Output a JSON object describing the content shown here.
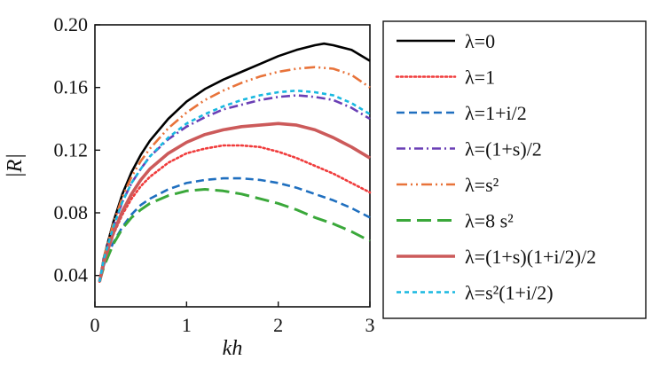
{
  "chart_data": {
    "type": "line",
    "xlabel": "kh",
    "ylabel": "|R|",
    "xlim": [
      0,
      3
    ],
    "ylim": [
      0.02,
      0.2
    ],
    "x_ticks": [
      "0",
      "1",
      "2",
      "3"
    ],
    "y_ticks": [
      "0.04",
      "0.08",
      "0.12",
      "0.16",
      "0.20"
    ],
    "legend_position": "right, outside plot",
    "series": [
      {
        "name": "λ=0",
        "color": "#000000",
        "dash": "solid",
        "x": [
          0.05,
          0.1,
          0.2,
          0.3,
          0.4,
          0.5,
          0.6,
          0.8,
          1.0,
          1.2,
          1.4,
          1.6,
          1.8,
          2.0,
          2.2,
          2.4,
          2.5,
          2.6,
          2.8,
          3.0
        ],
        "y": [
          0.036,
          0.052,
          0.074,
          0.092,
          0.106,
          0.117,
          0.126,
          0.14,
          0.151,
          0.159,
          0.165,
          0.17,
          0.175,
          0.18,
          0.184,
          0.187,
          0.188,
          0.187,
          0.184,
          0.177
        ]
      },
      {
        "name": "λ=1",
        "color": "#f03c3c",
        "dash": "dotted",
        "x": [
          0.05,
          0.1,
          0.2,
          0.3,
          0.4,
          0.5,
          0.6,
          0.8,
          1.0,
          1.2,
          1.4,
          1.6,
          1.8,
          2.0,
          2.2,
          2.4,
          2.6,
          2.8,
          3.0
        ],
        "y": [
          0.036,
          0.049,
          0.066,
          0.079,
          0.089,
          0.097,
          0.103,
          0.112,
          0.118,
          0.121,
          0.123,
          0.123,
          0.122,
          0.119,
          0.115,
          0.11,
          0.105,
          0.099,
          0.093
        ]
      },
      {
        "name": "λ=1+i/2",
        "color": "#1f6fbf",
        "dash": "dashed",
        "x": [
          0.05,
          0.1,
          0.2,
          0.3,
          0.4,
          0.5,
          0.6,
          0.8,
          1.0,
          1.2,
          1.4,
          1.6,
          1.8,
          2.0,
          2.2,
          2.4,
          2.6,
          2.8,
          3.0
        ],
        "y": [
          0.036,
          0.047,
          0.061,
          0.071,
          0.079,
          0.085,
          0.089,
          0.095,
          0.099,
          0.101,
          0.102,
          0.102,
          0.101,
          0.099,
          0.096,
          0.092,
          0.088,
          0.083,
          0.077
        ]
      },
      {
        "name": "λ=(1+s)/2",
        "color": "#6a3fb5",
        "dash": "dashdot",
        "x": [
          0.05,
          0.1,
          0.2,
          0.3,
          0.4,
          0.5,
          0.6,
          0.8,
          1.0,
          1.2,
          1.4,
          1.6,
          1.8,
          2.0,
          2.2,
          2.4,
          2.6,
          2.8,
          3.0
        ],
        "y": [
          0.036,
          0.051,
          0.071,
          0.087,
          0.099,
          0.108,
          0.116,
          0.127,
          0.135,
          0.141,
          0.146,
          0.149,
          0.152,
          0.154,
          0.155,
          0.154,
          0.152,
          0.147,
          0.14
        ]
      },
      {
        "name": "λ=s²",
        "color": "#e8733a",
        "dash": "dashdotdot",
        "x": [
          0.05,
          0.1,
          0.2,
          0.3,
          0.4,
          0.5,
          0.6,
          0.8,
          1.0,
          1.2,
          1.4,
          1.6,
          1.8,
          2.0,
          2.2,
          2.4,
          2.6,
          2.8,
          3.0
        ],
        "y": [
          0.036,
          0.052,
          0.073,
          0.09,
          0.103,
          0.113,
          0.121,
          0.134,
          0.144,
          0.152,
          0.158,
          0.163,
          0.167,
          0.17,
          0.172,
          0.173,
          0.172,
          0.168,
          0.16
        ]
      },
      {
        "name": "λ=8 s²",
        "color": "#3aa83a",
        "dash": "longdash",
        "x": [
          0.05,
          0.1,
          0.2,
          0.3,
          0.4,
          0.5,
          0.6,
          0.8,
          1.0,
          1.2,
          1.4,
          1.6,
          1.8,
          2.0,
          2.2,
          2.4,
          2.6,
          2.8,
          3.0
        ],
        "y": [
          0.036,
          0.046,
          0.06,
          0.07,
          0.077,
          0.082,
          0.086,
          0.091,
          0.094,
          0.095,
          0.094,
          0.092,
          0.089,
          0.086,
          0.082,
          0.077,
          0.073,
          0.068,
          0.062
        ]
      },
      {
        "name": "λ=(1+s)(1+i/2)/2",
        "color": "#cc5a5a",
        "dash": "solid-thick",
        "x": [
          0.05,
          0.1,
          0.2,
          0.3,
          0.4,
          0.5,
          0.6,
          0.8,
          1.0,
          1.2,
          1.4,
          1.6,
          1.8,
          2.0,
          2.2,
          2.4,
          2.6,
          2.8,
          3.0
        ],
        "y": [
          0.036,
          0.049,
          0.067,
          0.081,
          0.092,
          0.101,
          0.108,
          0.118,
          0.125,
          0.13,
          0.133,
          0.135,
          0.136,
          0.137,
          0.136,
          0.133,
          0.128,
          0.122,
          0.115
        ]
      },
      {
        "name": "λ=s²(1+i/2)",
        "color": "#18b8e0",
        "dash": "shortdash",
        "x": [
          0.05,
          0.1,
          0.2,
          0.3,
          0.4,
          0.5,
          0.6,
          0.8,
          1.0,
          1.2,
          1.4,
          1.6,
          1.8,
          2.0,
          2.2,
          2.4,
          2.6,
          2.8,
          3.0
        ],
        "y": [
          0.036,
          0.051,
          0.071,
          0.087,
          0.099,
          0.108,
          0.116,
          0.128,
          0.137,
          0.143,
          0.148,
          0.152,
          0.155,
          0.157,
          0.158,
          0.157,
          0.155,
          0.15,
          0.143
        ]
      }
    ]
  }
}
